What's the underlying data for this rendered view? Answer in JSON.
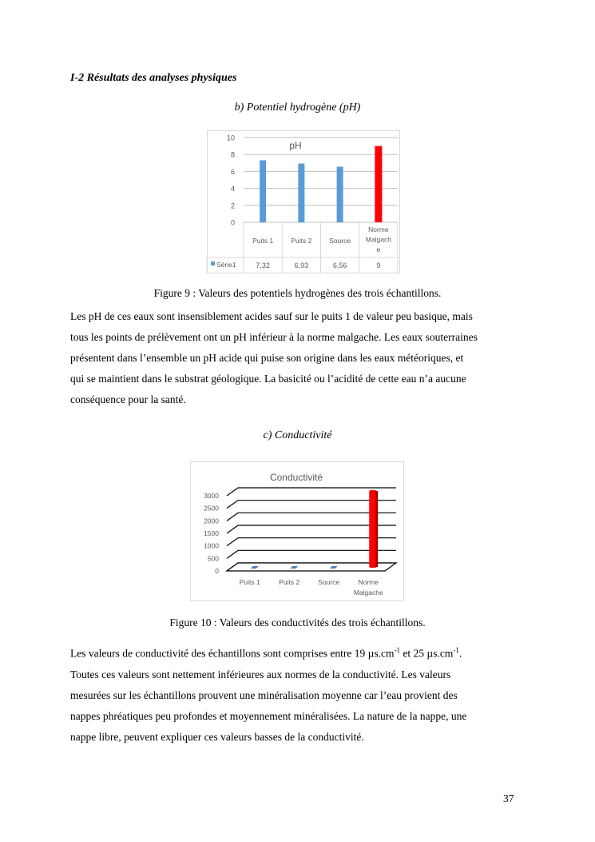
{
  "section_heading": "I-2 Résultats des analyses physiques",
  "sub_b": "b)   Potentiel hydrogène (pH)",
  "figure9_caption": "Figure 9 : Valeurs des potentiels hydrogènes des trois échantillons.",
  "para1": [
    "Les pH de ces eaux sont insensiblement acides sauf sur le puits 1 de valeur peu basique, mais",
    "tous les points de prélèvement ont un pH inférieur à la norme malgache. Les eaux souterraines",
    "présentent dans l’ensemble un pH acide qui puise son origine dans les eaux météoriques, et",
    "qui se maintient dans le substrat géologique. La basicité ou l’acidité de cette eau n’a aucune",
    "conséquence pour la santé."
  ],
  "sub_c": "c)   Conductivité",
  "figure10_caption": "Figure 10 : Valeurs des conductivités des trois échantillons.",
  "para2": {
    "line1_a": "Les valeurs de conductivité des échantillons sont comprises entre  19 µs.cm",
    "sup1": "-1",
    "line1_b": " et 25 µs.cm",
    "sup2": "-1",
    "line1_c": ".",
    "lines": [
      "Toutes ces valeurs sont nettement inférieures aux normes de la conductivité. Les valeurs",
      "mesurées sur les échantillons prouvent une minéralisation moyenne car l’eau provient des",
      "nappes phréatiques peu profondes et moyennement minéralisées. La nature de la nappe, une",
      "nappe libre, peuvent expliquer  ces valeurs basses de la conductivité."
    ]
  },
  "page_number": "37",
  "chart_data": [
    {
      "type": "bar",
      "title": "pH",
      "categories": [
        "Puits 1",
        "Puits 2",
        "Source",
        "Norme Malgache"
      ],
      "category_display": [
        [
          "Puits 1"
        ],
        [
          "Puits 2"
        ],
        [
          "Source"
        ],
        [
          "Norme",
          "Malgach",
          "e"
        ]
      ],
      "series": [
        {
          "name": "Série1",
          "values": [
            7.32,
            6.93,
            6.56,
            9
          ],
          "value_labels": [
            "7,32",
            "6,93",
            "6,56",
            "9"
          ]
        }
      ],
      "colors": [
        "#5b9bd5",
        "#5b9bd5",
        "#5b9bd5",
        "#ff0000"
      ],
      "ylim": [
        0,
        10
      ],
      "yticks": [
        0,
        2,
        4,
        6,
        8,
        10
      ],
      "grid": true,
      "data_table": true
    },
    {
      "type": "bar",
      "title": "Conductivité",
      "categories": [
        "Puits 1",
        "Puits 2",
        "Source",
        "Norme Malgache"
      ],
      "category_display": [
        [
          "Puits 1"
        ],
        [
          "Puits 2"
        ],
        [
          "Source"
        ],
        [
          "Norme",
          "Malgache"
        ]
      ],
      "values": [
        19,
        22,
        25,
        3000
      ],
      "colors": [
        "#4f81bd",
        "#4f81bd",
        "#4f81bd",
        "#ff0000"
      ],
      "ylim": [
        0,
        3000
      ],
      "yticks": [
        0,
        500,
        1000,
        1500,
        2000,
        2500,
        3000
      ],
      "grid": true,
      "style": "3d"
    }
  ]
}
